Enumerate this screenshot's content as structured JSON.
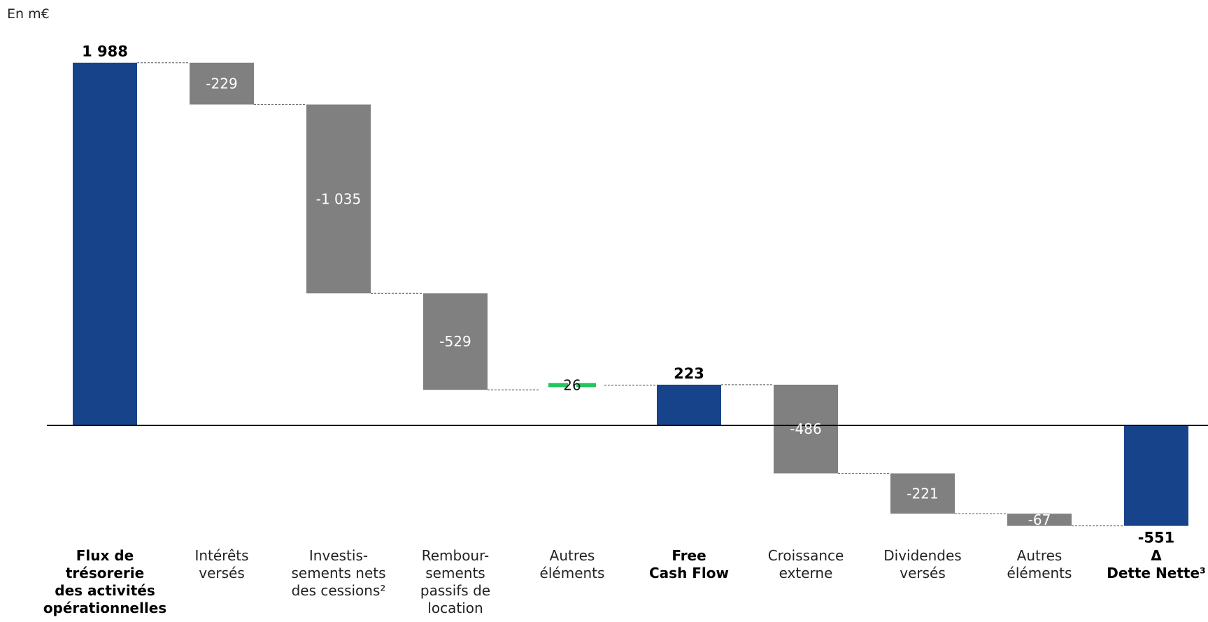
{
  "unit_label": "En m€",
  "chart_data": {
    "type": "bar",
    "subtype": "waterfall",
    "unit": "m€",
    "categories": [
      [
        "Flux de",
        "trésorerie",
        "des activités",
        "opérationnelles"
      ],
      [
        "Intérêts",
        "versés"
      ],
      [
        "Investis-",
        "sements nets",
        "des cessions²"
      ],
      [
        "Rembour-",
        "sements",
        "passifs de",
        "location"
      ],
      [
        "Autres",
        "éléments"
      ],
      [
        "Free",
        "Cash Flow"
      ],
      [
        "Croissance",
        "externe"
      ],
      [
        "Dividendes",
        "versés"
      ],
      [
        "Autres",
        "éléments"
      ],
      [
        "Δ",
        "Dette Nette³"
      ]
    ],
    "bold_categories": [
      true,
      false,
      false,
      false,
      false,
      true,
      false,
      false,
      false,
      true
    ],
    "kinds": [
      "total",
      "delta",
      "delta",
      "delta",
      "delta",
      "total",
      "delta",
      "delta",
      "delta",
      "total"
    ],
    "values": [
      1988,
      -229,
      -1035,
      -529,
      26,
      223,
      -486,
      -221,
      -67,
      -551
    ],
    "value_labels": [
      "1 988",
      "-229",
      "-1 035",
      "-529",
      "26",
      "223",
      "-486",
      "-221",
      "-67",
      "-551"
    ],
    "colors": {
      "total": "#17438a",
      "negative": "#808080",
      "positive": "#22c55e"
    },
    "ylim": [
      -600,
      2200
    ],
    "grid": false,
    "legend": "none"
  }
}
